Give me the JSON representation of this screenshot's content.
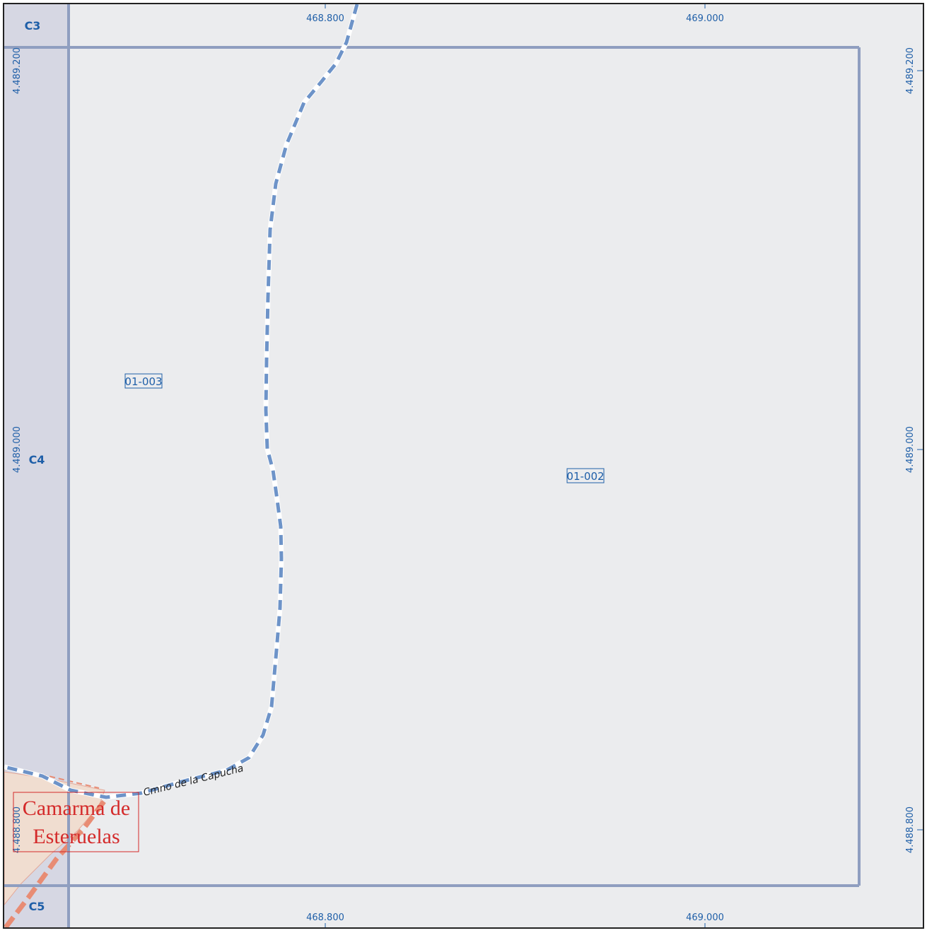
{
  "grid_labels": {
    "x_top": [
      "468.800",
      "469.000"
    ],
    "x_bottom": [
      "468.800",
      "469.000"
    ],
    "y_left": [
      "4.489.200",
      "4.489.000",
      "4.488.800"
    ],
    "y_right": [
      "4.489.200",
      "4.489.000",
      "4.488.800"
    ]
  },
  "zones": [
    "C3",
    "C4",
    "C5"
  ],
  "parcels": [
    "01-003",
    "01-002"
  ],
  "road_name": "Cmno de la Capucha",
  "town": {
    "line1": "Camarma de",
    "line2": "Esteruelas"
  },
  "colors": {
    "map_bg": "#ebecee",
    "strip": "#d6d7e3",
    "frame": "#8f9ec0",
    "label_blue": "#1f5fa8",
    "town_red": "#d42a2a",
    "road_dash": "#6d93c8",
    "urban": "#f0ddd0"
  }
}
